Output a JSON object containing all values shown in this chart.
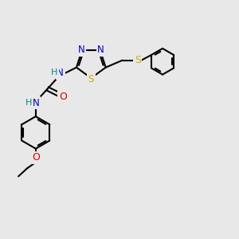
{
  "bg_color": "#e8e8e8",
  "bond_color": "#000000",
  "N_color": "#0000cc",
  "S_color": "#ccaa00",
  "O_color": "#dd0000",
  "H_color": "#008888",
  "line_width": 1.5,
  "figsize": [
    3.0,
    3.0
  ],
  "dpi": 100,
  "xlim": [
    0,
    10
  ],
  "ylim": [
    0,
    10
  ]
}
